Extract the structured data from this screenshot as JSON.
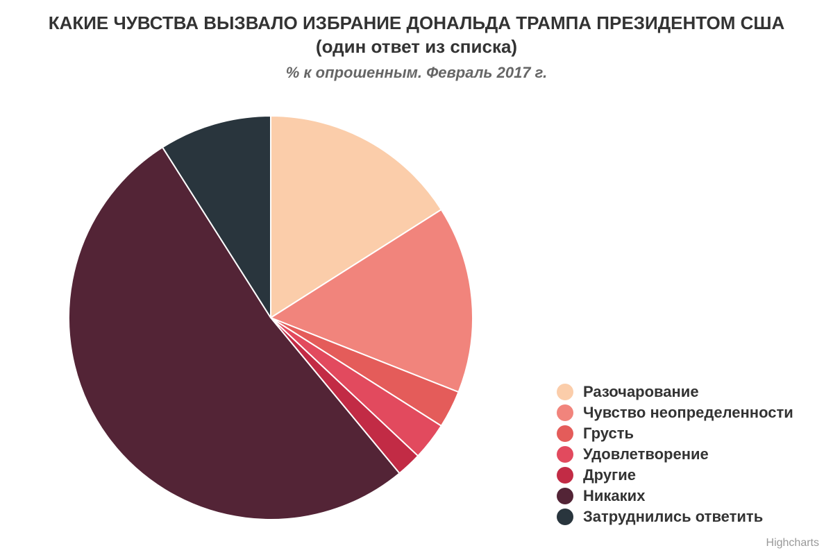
{
  "title": "КАКИЕ ЧУВСТВА ВЫЗВАЛО ИЗБРАНИЕ ДОНАЛЬДА ТРАМПА ПРЕЗИДЕНТОМ США (один ответ из списка)",
  "subtitle": "% к опрошенным. Февраль 2017 г.",
  "credits": "Highcharts",
  "chart_data": {
    "type": "pie",
    "start_angle_deg": 0,
    "legend_position": "bottom-right",
    "slices": [
      {
        "name": "Разочарование",
        "value": 16,
        "color": "#FBCDAA"
      },
      {
        "name": "Чувство неопределенности",
        "value": 15,
        "color": "#F1847C"
      },
      {
        "name": "Грусть",
        "value": 3,
        "color": "#E45C5A"
      },
      {
        "name": "Удовлетворение",
        "value": 3,
        "color": "#E24A5E"
      },
      {
        "name": "Другие",
        "value": 2,
        "color": "#C22B45"
      },
      {
        "name": "Никаких",
        "value": 52,
        "color": "#532436"
      },
      {
        "name": "Затруднились ответить",
        "value": 9,
        "color": "#29353D"
      }
    ]
  }
}
